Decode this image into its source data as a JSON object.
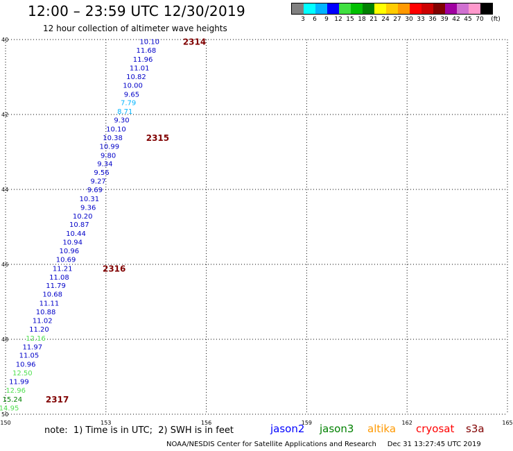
{
  "title": "12:00 – 23:59 UTC 12/30/2019",
  "subtitle": "12 hour collection of altimeter wave heights",
  "legend": {
    "colors": [
      "#808080",
      "#00ffff",
      "#00b4ff",
      "#0000ff",
      "#40e040",
      "#00c000",
      "#008000",
      "#ffff00",
      "#ffcc00",
      "#ff9900",
      "#ff0000",
      "#cc0000",
      "#800000",
      "#a000a0",
      "#d070d0",
      "#ff99cc",
      "#000000"
    ],
    "ticks": [
      "3",
      "6",
      "9",
      "12",
      "15",
      "18",
      "21",
      "24",
      "27",
      "30",
      "33",
      "36",
      "39",
      "42",
      "45",
      "70",
      "(ft)"
    ]
  },
  "axes": {
    "y_labels": [
      "40",
      "42",
      "44",
      "46",
      "48",
      "50"
    ],
    "x_labels": [
      "150",
      "153",
      "156",
      "159",
      "162",
      "165"
    ]
  },
  "chart_data": {
    "type": "scatter",
    "title": "12:00 – 23:59 UTC 12/30/2019",
    "subtitle": "12 hour collection of altimeter wave heights",
    "xlim": [
      150,
      165
    ],
    "ylim": [
      40,
      50
    ],
    "grid": true,
    "gridline_style": "dashed",
    "hemisphere_note": "",
    "track_points": [
      {
        "x": 154.6,
        "y": 40.05,
        "label": "10.10",
        "color": "#0000c8"
      },
      {
        "x": 154.5,
        "y": 40.28,
        "label": "11.68",
        "color": "#0000c8"
      },
      {
        "x": 154.4,
        "y": 40.52,
        "label": "11.96",
        "color": "#0000c8"
      },
      {
        "x": 154.3,
        "y": 40.75,
        "label": "11.01",
        "color": "#0000c8"
      },
      {
        "x": 154.2,
        "y": 40.98,
        "label": "10.82",
        "color": "#0000c8"
      },
      {
        "x": 154.1,
        "y": 41.21,
        "label": "10.00",
        "color": "#0000c8"
      },
      {
        "x": 154.0,
        "y": 41.45,
        "label": "9.65",
        "color": "#0000c8"
      },
      {
        "x": 153.9,
        "y": 41.68,
        "label": "7.79",
        "color": "#00b4ff"
      },
      {
        "x": 153.8,
        "y": 41.91,
        "label": "8.71",
        "color": "#00b4ff"
      },
      {
        "x": 153.7,
        "y": 42.14,
        "label": "9.30",
        "color": "#0000c8"
      },
      {
        "x": 153.6,
        "y": 42.38,
        "label": "10.10",
        "color": "#0000c8"
      },
      {
        "x": 153.5,
        "y": 42.61,
        "label": "10.38",
        "color": "#0000c8"
      },
      {
        "x": 153.4,
        "y": 42.84,
        "label": "10.99",
        "color": "#0000c8"
      },
      {
        "x": 153.3,
        "y": 43.08,
        "label": "9.80",
        "color": "#0000c8"
      },
      {
        "x": 153.2,
        "y": 43.31,
        "label": "9.34",
        "color": "#0000c8"
      },
      {
        "x": 153.1,
        "y": 43.54,
        "label": "9.56",
        "color": "#0000c8"
      },
      {
        "x": 153.0,
        "y": 43.77,
        "label": "9.27",
        "color": "#0000c8"
      },
      {
        "x": 152.9,
        "y": 44.0,
        "label": "9.69",
        "color": "#0000c8"
      },
      {
        "x": 152.8,
        "y": 44.24,
        "label": "10.31",
        "color": "#0000c8"
      },
      {
        "x": 152.7,
        "y": 44.47,
        "label": "9.36",
        "color": "#0000c8"
      },
      {
        "x": 152.6,
        "y": 44.7,
        "label": "10.20",
        "color": "#0000c8"
      },
      {
        "x": 152.5,
        "y": 44.93,
        "label": "10.87",
        "color": "#0000c8"
      },
      {
        "x": 152.4,
        "y": 45.17,
        "label": "10.44",
        "color": "#0000c8"
      },
      {
        "x": 152.3,
        "y": 45.4,
        "label": "10.94",
        "color": "#0000c8"
      },
      {
        "x": 152.2,
        "y": 45.63,
        "label": "10.96",
        "color": "#0000c8"
      },
      {
        "x": 152.1,
        "y": 45.86,
        "label": "10.69",
        "color": "#0000c8"
      },
      {
        "x": 152.0,
        "y": 46.1,
        "label": "11.21",
        "color": "#0000c8"
      },
      {
        "x": 151.9,
        "y": 46.33,
        "label": "11.08",
        "color": "#0000c8"
      },
      {
        "x": 151.8,
        "y": 46.56,
        "label": "11.79",
        "color": "#0000c8"
      },
      {
        "x": 151.7,
        "y": 46.79,
        "label": "10.68",
        "color": "#0000c8"
      },
      {
        "x": 151.6,
        "y": 47.03,
        "label": "11.11",
        "color": "#0000c8"
      },
      {
        "x": 151.5,
        "y": 47.26,
        "label": "10.88",
        "color": "#0000c8"
      },
      {
        "x": 151.4,
        "y": 47.49,
        "label": "11.02",
        "color": "#0000c8"
      },
      {
        "x": 151.3,
        "y": 47.72,
        "label": "11.20",
        "color": "#0000c8"
      },
      {
        "x": 151.2,
        "y": 47.96,
        "label": "12.16",
        "color": "#50e050"
      },
      {
        "x": 151.1,
        "y": 48.19,
        "label": "11.97",
        "color": "#0000c8"
      },
      {
        "x": 151.0,
        "y": 48.42,
        "label": "11.05",
        "color": "#0000c8"
      },
      {
        "x": 150.9,
        "y": 48.66,
        "label": "10.96",
        "color": "#0000c8"
      },
      {
        "x": 150.8,
        "y": 48.89,
        "label": "12.50",
        "color": "#50e050"
      },
      {
        "x": 150.7,
        "y": 49.12,
        "label": "11.99",
        "color": "#0000c8"
      },
      {
        "x": 150.6,
        "y": 49.35,
        "label": "12.96",
        "color": "#50e050"
      },
      {
        "x": 150.5,
        "y": 49.59,
        "label": "15.24",
        "color": "#008000"
      },
      {
        "x": 150.4,
        "y": 49.82,
        "label": "14.95",
        "color": "#50e050"
      }
    ],
    "time_labels": [
      {
        "x": 155.3,
        "y": 40.05,
        "label": "2314"
      },
      {
        "x": 154.2,
        "y": 42.61,
        "label": "2315"
      },
      {
        "x": 152.9,
        "y": 46.1,
        "label": "2316"
      },
      {
        "x": 151.2,
        "y": 49.59,
        "label": "2317"
      }
    ],
    "time_label_color": "#800000"
  },
  "note": "note:  1) Time is in UTC;  2) SWH is in feet",
  "satellites": [
    {
      "name": "jason2",
      "color": "#0000ff"
    },
    {
      "name": "jason3",
      "color": "#008000"
    },
    {
      "name": "altika",
      "color": "#ff9900"
    },
    {
      "name": "cryosat",
      "color": "#ff0000"
    },
    {
      "name": "s3a",
      "color": "#800000"
    }
  ],
  "credit": "NOAA/NESDIS Center for Satellite Applications and Research     Dec 31 13:27:45 UTC 2019"
}
